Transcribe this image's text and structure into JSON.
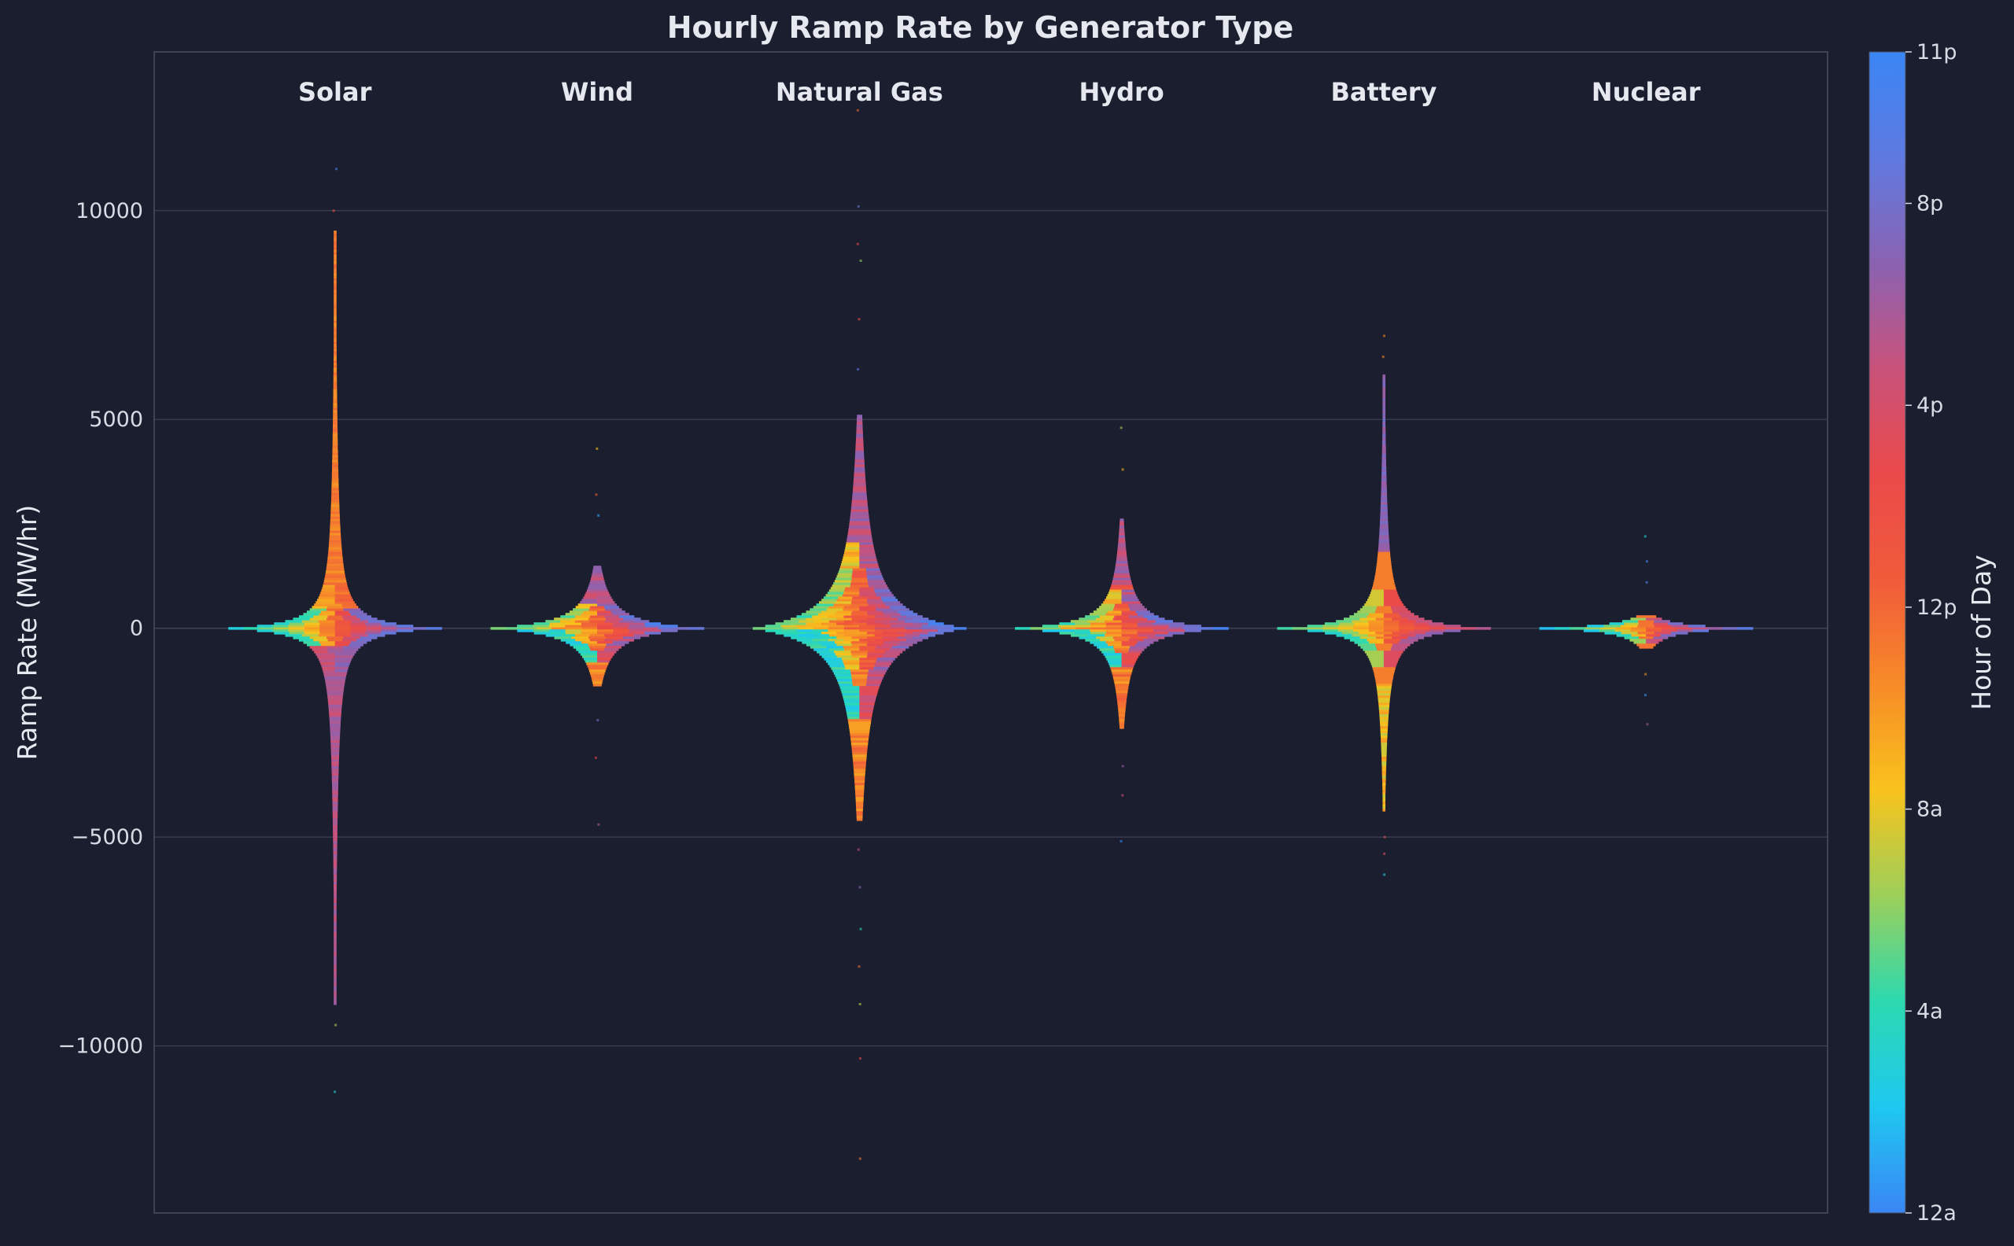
{
  "chart_data": {
    "type": "scatter",
    "subtype": "beeswarm",
    "title": "Hourly Ramp Rate by Generator Type",
    "xlabel": "",
    "ylabel": "Ramp Rate (MW/hr)",
    "ylim": [
      -14000,
      13800
    ],
    "yticks": [
      10000,
      5000,
      0,
      -5000,
      -10000
    ],
    "ytick_labels": [
      "10000",
      "5000",
      "0",
      "−5000",
      "−10000"
    ],
    "grid": true,
    "categories": [
      "Solar",
      "Wind",
      "Natural Gas",
      "Hydro",
      "Battery",
      "Nuclear"
    ],
    "series": [
      {
        "name": "Solar",
        "upper_extent": 9500,
        "lower_extent": -9000,
        "core_halfwidth_mw": 180,
        "outliers": [
          11000,
          10000,
          -9500,
          -11100
        ]
      },
      {
        "name": "Wind",
        "upper_extent": 1500,
        "lower_extent": -1400,
        "core_halfwidth_mw": 220,
        "outliers": [
          4300,
          3200,
          2700,
          -2200,
          -3100,
          -4700
        ]
      },
      {
        "name": "Natural Gas",
        "upper_extent": 5100,
        "lower_extent": -4600,
        "core_halfwidth_mw": 520,
        "outliers": [
          12400,
          10100,
          9200,
          8800,
          7400,
          6200,
          -5300,
          -6200,
          -7200,
          -8100,
          -9000,
          -10300,
          -12700
        ]
      },
      {
        "name": "Hydro",
        "upper_extent": 2600,
        "lower_extent": -2400,
        "core_halfwidth_mw": 200,
        "outliers": [
          4800,
          3800,
          -3300,
          -4000,
          -5100
        ]
      },
      {
        "name": "Battery",
        "upper_extent": 6100,
        "lower_extent": -4400,
        "core_halfwidth_mw": 170,
        "outliers": [
          7000,
          6500,
          -5000,
          -5400,
          -5900
        ]
      },
      {
        "name": "Nuclear",
        "upper_extent": 300,
        "lower_extent": -500,
        "core_halfwidth_mw": 40,
        "outliers": [
          2200,
          1600,
          1100,
          -1100,
          -1600,
          -2300
        ]
      }
    ],
    "colorbar": {
      "label": "Hour of Day",
      "range": [
        0,
        23
      ],
      "ticks": [
        0,
        4,
        8,
        12,
        16,
        20,
        23
      ],
      "tick_labels": [
        "12a",
        "4a",
        "8a",
        "12p",
        "4p",
        "8p",
        "11p"
      ],
      "stops": [
        "#3a86f5",
        "#1ec8f0",
        "#2cd9b0",
        "#9ccf5a",
        "#f8c31c",
        "#f78b28",
        "#f05b3a",
        "#ea4a4a",
        "#c9527a",
        "#8a62b2",
        "#5f7ae0",
        "#3a86f5"
      ]
    },
    "colors": {
      "background": "#1b1e2e",
      "grid": "#3c4152",
      "frame": "#4a4f60",
      "text": "#e6e8f0",
      "tick_text": "#d8dae4"
    }
  }
}
